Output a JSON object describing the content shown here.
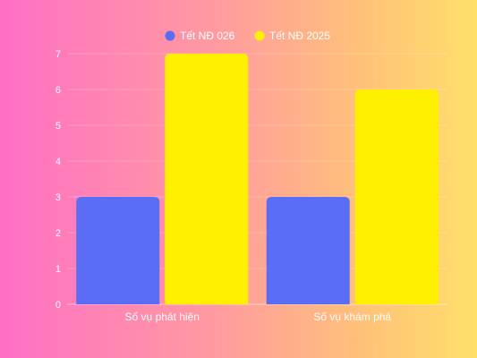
{
  "chart_data": {
    "type": "bar",
    "categories": [
      "Số vụ phát hiện",
      "Số vụ khám phá"
    ],
    "series": [
      {
        "name": "Tết NĐ 026",
        "values": [
          3,
          3
        ],
        "color": "#5b6cf5"
      },
      {
        "name": "Tết NĐ 2025",
        "values": [
          7,
          6
        ],
        "color": "#fff000"
      }
    ],
    "yticks": [
      "0",
      "1",
      "2",
      "3",
      "4",
      "5",
      "6",
      "7"
    ],
    "ylim": [
      0,
      7
    ],
    "grid": true,
    "legend_position": "top-center"
  }
}
